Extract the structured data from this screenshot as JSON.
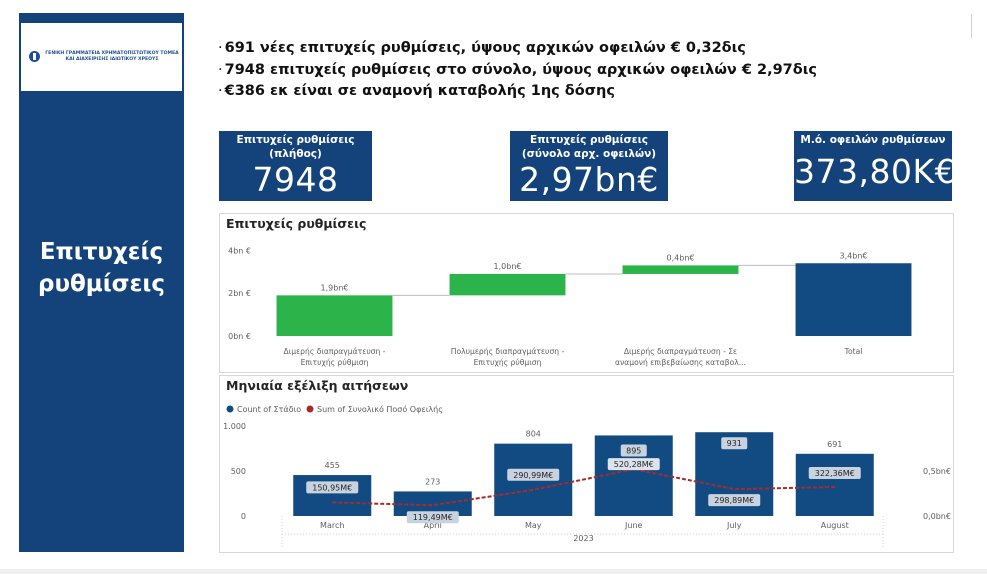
{
  "sidebar": {
    "logo_text": "ΓΕΝΙΚΗ ΓΡΑΜΜΑΤΕΙΑ ΧΡΗΜΑΤΟΠΙΣΤΩΤΙΚΟΥ ΤΟΜΕΑ ΚΑΙ ΔΙΑΧΕΙΡΙΣΗΣ ΙΔΙΩΤΙΚΟΥ ΧΡΕΟΥΣ",
    "title_line1": "Επιτυχείς",
    "title_line2": "ρυθμίσεις"
  },
  "bullets": [
    "691 νέες επιτυχείς ρυθμίσεις, ύψους αρχικών οφειλών € 0,32δις",
    "7948 επιτυχείς ρυθμίσεις στο σύνολο, ύψους αρχικών οφειλών € 2,97δις",
    "€386 εκ είναι σε αναμονή καταβολής 1ης δόσης"
  ],
  "bullet_marker": "·",
  "kpis": [
    {
      "label": "Επιτυχείς ρυθμίσεις (πλήθος)",
      "value": "7948"
    },
    {
      "label": "Επιτυχείς ρυθμίσεις (σύνολο αρχ. οφειλών)",
      "value": "2,97bn€"
    },
    {
      "label": "Μ.ό. οφειλών ρυθμίσεων",
      "value": "373,80K€"
    }
  ],
  "colors": {
    "navy": "#14437c",
    "bar_blue": "#124a82",
    "green": "#2cb44a",
    "line_red": "#a62c2c"
  },
  "chart_data": [
    {
      "type": "bar",
      "subtype": "waterfall",
      "title": "Επιτυχείς ρυθμίσεις",
      "categories": [
        [
          "Διμερής διαπραγμάτευση -",
          "Επιτυχής ρύθμιση"
        ],
        [
          "Πολυμερής διαπραγμάτευση -",
          "Επιτυχής ρύθμιση"
        ],
        [
          "Διμερής διαπραγμάτευση - Σε",
          "αναμονή επιβεβαίωσης καταβολ..."
        ],
        [
          "Total"
        ]
      ],
      "values": [
        1.9,
        1.0,
        0.4,
        3.4
      ],
      "data_labels": [
        "1,9bn€",
        "1,0bn€",
        "0,4bn€",
        "3,4bn€"
      ],
      "is_total": [
        false,
        false,
        false,
        true
      ],
      "y_ticks": [
        0,
        2,
        4
      ],
      "y_tick_labels": [
        "0bn €",
        "2bn €",
        "4bn €"
      ],
      "ylim": [
        0,
        4.3
      ],
      "grid": false
    },
    {
      "type": "bar",
      "subtype": "combo-bar-line",
      "title": "Μηνιαία εξέλιξη αιτήσεων",
      "categories": [
        "March",
        "April",
        "May",
        "June",
        "July",
        "August"
      ],
      "x_group_label": "2023",
      "legend": [
        "Count of Στάδιο",
        "Sum of Συνολικό Ποσό Οφειλής"
      ],
      "legend_position": "top-left",
      "series": [
        {
          "name": "Count of Στάδιο",
          "axis": "left",
          "values": [
            455,
            273,
            804,
            895,
            931,
            691
          ],
          "labels": [
            "455",
            "273",
            "804",
            "895",
            "931",
            "691"
          ]
        },
        {
          "name": "Sum of Συνολικό Ποσό Οφειλής",
          "axis": "right",
          "values": [
            150.95,
            119.49,
            290.99,
            520.28,
            298.89,
            322.36
          ],
          "labels": [
            "150,95M€",
            "119,49M€",
            "290,99M€",
            "520,28M€",
            "298,89M€",
            "322,36M€"
          ]
        }
      ],
      "y_left_ticks": [
        0,
        500,
        1000
      ],
      "y_left_tick_labels": [
        "0",
        "500",
        "1.000"
      ],
      "y_left_lim": [
        0,
        1000
      ],
      "y_right_ticks": [
        0,
        500
      ],
      "y_right_tick_labels": [
        "0,0bn€",
        "0,5bn€"
      ],
      "y_right_lim": [
        0,
        1000
      ],
      "grid": false
    }
  ]
}
